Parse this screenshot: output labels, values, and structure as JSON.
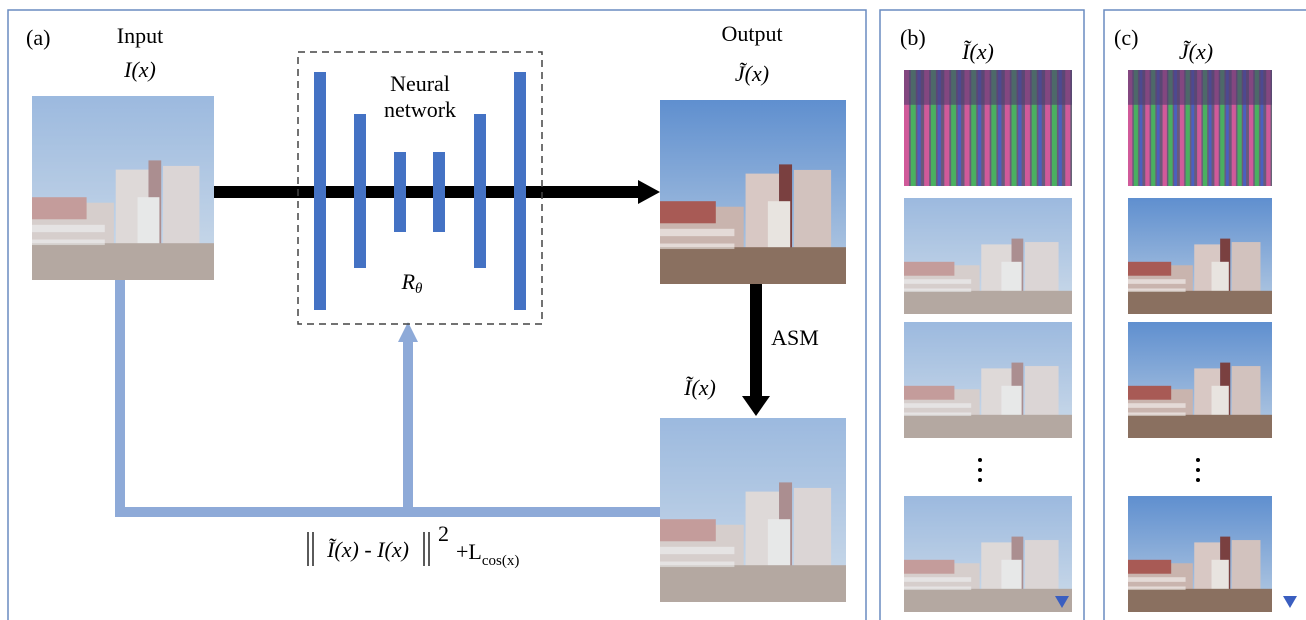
{
  "panel_a": {
    "label": "(a)",
    "input_title": "Input",
    "input_symbol": "I(x)",
    "network_line1": "Neural",
    "network_line2": "network",
    "network_symbol": "R",
    "network_symbol_sub": "θ",
    "output_title": "Output",
    "output_symbol": "J̃(x)",
    "asm": "ASM",
    "reconstructed_symbol": "Ĩ(x)",
    "loss": {
      "inner": "Ĩ(x) - I(x)",
      "power": "2",
      "plus_term": "+L",
      "subscript": "cos(x)"
    }
  },
  "panel_b": {
    "label": "(b)",
    "symbol": "Ĩ(x)"
  },
  "panel_c": {
    "label": "(c)",
    "symbol": "J̃(x)"
  }
}
